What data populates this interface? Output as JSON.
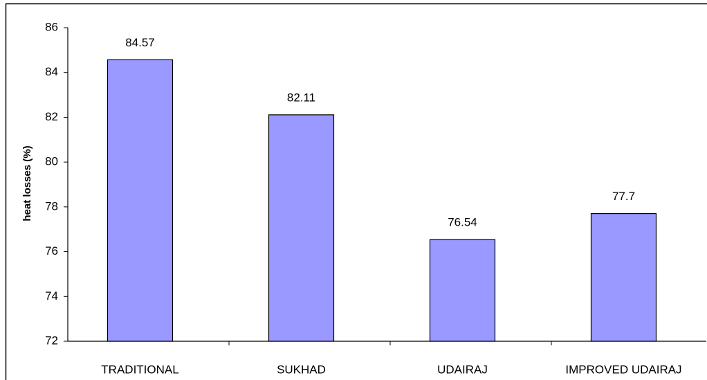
{
  "chart_data": {
    "type": "bar",
    "ylabel": "heat losses (%)",
    "categories": [
      "TRADITIONAL",
      "SUKHAD",
      "UDAIRAJ",
      "IMPROVED UDAIRAJ"
    ],
    "values": [
      84.57,
      82.11,
      76.54,
      77.7
    ],
    "color": "#9999ff",
    "ylim": [
      72,
      86
    ],
    "yticks": [
      72,
      74,
      76,
      78,
      80,
      82,
      84,
      86
    ],
    "grid": false
  }
}
